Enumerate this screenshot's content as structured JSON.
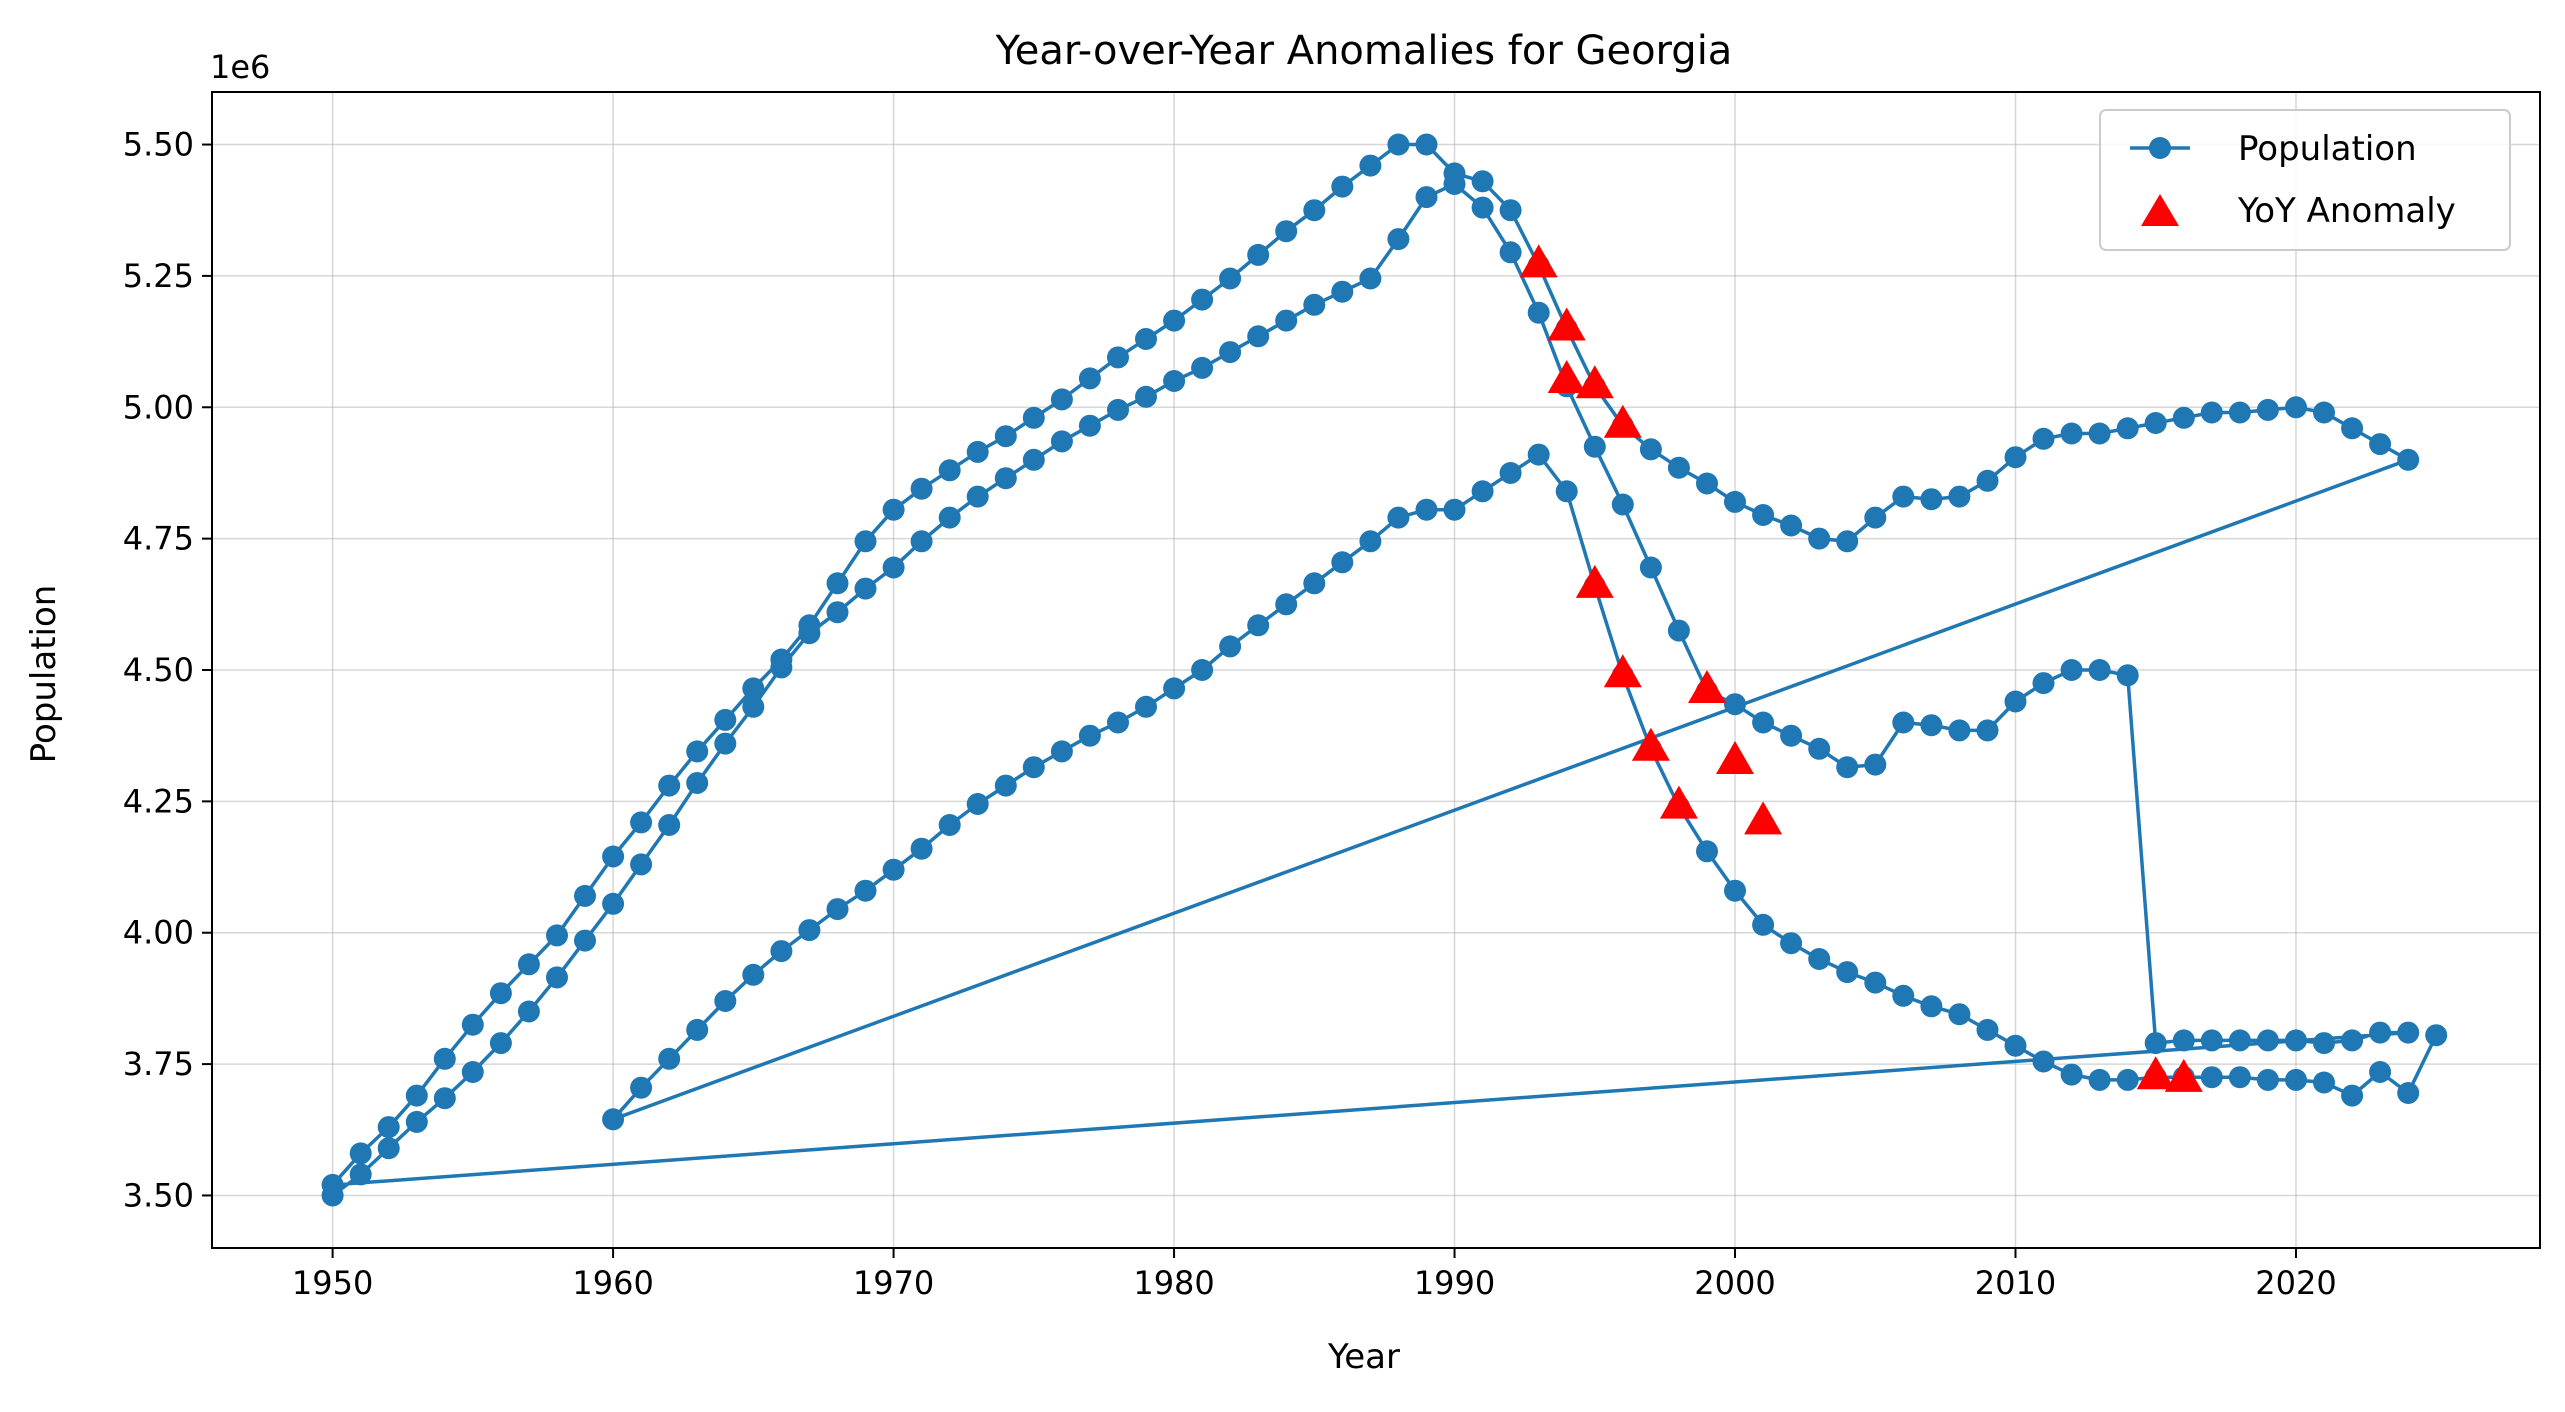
{
  "chart_data": {
    "type": "line",
    "title": "Year-over-Year Anomalies for Georgia",
    "xlabel": "Year",
    "ylabel": "Population",
    "y_offset_label": "1e6",
    "xlim": [
      1945.7,
      2028.7
    ],
    "ylim": [
      3.4,
      5.6
    ],
    "x_ticks": [
      1950,
      1960,
      1970,
      1980,
      1990,
      2000,
      2010,
      2020
    ],
    "x_tick_labels": [
      "1950",
      "1960",
      "1970",
      "1980",
      "1990",
      "2000",
      "2010",
      "2020"
    ],
    "y_ticks": [
      3.5,
      3.75,
      4.0,
      4.25,
      4.5,
      4.75,
      5.0,
      5.25,
      5.5
    ],
    "y_tick_labels": [
      "3.50",
      "3.75",
      "4.00",
      "4.25",
      "4.50",
      "4.75",
      "5.00",
      "5.25",
      "5.50"
    ],
    "grid": true,
    "legend_position": "top-right",
    "colors": {
      "line": "#1f77b4",
      "anomaly": "#ff0000",
      "grid": "#b0b0b0"
    },
    "series": [
      {
        "name": "Population",
        "type": "line",
        "marker": "circle",
        "x": [
          1950,
          1951,
          1952,
          1953,
          1954,
          1955,
          1956,
          1957,
          1958,
          1959,
          1960,
          1961,
          1962,
          1963,
          1964,
          1965,
          1966,
          1967,
          1968,
          1969,
          1970,
          1971,
          1972,
          1973,
          1974,
          1975,
          1976,
          1977,
          1978,
          1979,
          1980,
          1981,
          1982,
          1983,
          1984,
          1985,
          1986,
          1987,
          1988,
          1989,
          1990,
          1991,
          1992,
          1993,
          1994,
          1995,
          1996,
          1997,
          1998,
          1999,
          2000,
          2001,
          2002,
          2003,
          2004,
          2005,
          2006,
          2007,
          2008,
          2009,
          2010,
          2011,
          2012,
          2013,
          2014,
          2015,
          2016,
          2017,
          2018,
          2019,
          2020,
          2021,
          2022,
          2023,
          2024,
          1950,
          1951,
          1952,
          1953,
          1954,
          1955,
          1956,
          1957,
          1958,
          1959,
          1960,
          1961,
          1962,
          1963,
          1964,
          1965,
          1966,
          1967,
          1968,
          1969,
          1970,
          1971,
          1972,
          1973,
          1974,
          1975,
          1976,
          1977,
          1978,
          1979,
          1980,
          1981,
          1982,
          1983,
          1984,
          1985,
          1986,
          1987,
          1988,
          1989,
          1990,
          1991,
          1992,
          1993,
          1994,
          1995,
          1996,
          1997,
          1998,
          1999,
          2000,
          2001,
          2002,
          2003,
          2004,
          2005,
          2006,
          2007,
          2008,
          2009,
          2010,
          2011,
          2012,
          2013,
          2014,
          2015,
          2016,
          2017,
          2018,
          2019,
          2020,
          2021,
          2022,
          2023,
          2024,
          1960,
          1961,
          1962,
          1963,
          1964,
          1965,
          1966,
          1967,
          1968,
          1969,
          1970,
          1971,
          1972,
          1973,
          1974,
          1975,
          1976,
          1977,
          1978,
          1979,
          1980,
          1981,
          1982,
          1983,
          1984,
          1985,
          1986,
          1987,
          1988,
          1989,
          1990,
          1991,
          1992,
          1993,
          1994,
          1995,
          1996,
          1997,
          1998,
          1999,
          2000,
          2001,
          2002,
          2003,
          2004,
          2005,
          2006,
          2007,
          2008,
          2009,
          2010,
          2011,
          2012,
          2013,
          2014,
          2015,
          2016,
          2017,
          2018,
          2019,
          2020,
          2021,
          2022,
          2023,
          2024,
          2025
        ],
        "values": [
          3.5,
          3.54,
          3.59,
          3.64,
          3.685,
          3.735,
          3.79,
          3.85,
          3.915,
          3.985,
          4.055,
          4.13,
          4.205,
          4.285,
          4.36,
          4.43,
          4.505,
          4.57,
          4.61,
          4.655,
          4.695,
          4.745,
          4.79,
          4.83,
          4.865,
          4.9,
          4.935,
          4.965,
          4.995,
          5.02,
          5.05,
          5.075,
          5.105,
          5.135,
          5.165,
          5.195,
          5.22,
          5.245,
          5.32,
          5.4,
          5.425,
          5.38,
          5.295,
          5.18,
          5.04,
          4.925,
          4.815,
          4.695,
          4.575,
          4.46,
          4.435,
          4.4,
          4.375,
          4.35,
          4.315,
          4.32,
          4.4,
          4.395,
          4.385,
          4.385,
          4.44,
          4.475,
          4.5,
          4.5,
          4.49,
          3.79,
          3.795,
          3.795,
          3.795,
          3.795,
          3.795,
          3.79,
          3.795,
          3.81,
          3.81,
          3.52,
          3.58,
          3.63,
          3.69,
          3.76,
          3.825,
          3.885,
          3.94,
          3.995,
          4.07,
          4.145,
          4.21,
          4.28,
          4.345,
          4.405,
          4.465,
          4.52,
          4.585,
          4.665,
          4.745,
          4.805,
          4.845,
          4.88,
          4.915,
          4.945,
          4.98,
          5.015,
          5.055,
          5.095,
          5.13,
          5.165,
          5.205,
          5.245,
          5.29,
          5.335,
          5.375,
          5.42,
          5.46,
          5.5,
          5.5,
          5.445,
          5.43,
          5.375,
          5.27,
          5.15,
          5.04,
          4.965,
          4.92,
          4.885,
          4.855,
          4.82,
          4.795,
          4.775,
          4.75,
          4.745,
          4.79,
          4.83,
          4.825,
          4.83,
          4.86,
          4.905,
          4.94,
          4.95,
          4.95,
          4.96,
          4.97,
          4.98,
          4.99,
          4.99,
          4.995,
          5.0,
          4.99,
          4.96,
          4.93,
          4.9,
          3.645,
          3.705,
          3.76,
          3.815,
          3.87,
          3.92,
          3.965,
          4.005,
          4.045,
          4.08,
          4.12,
          4.16,
          4.205,
          4.245,
          4.28,
          4.315,
          4.345,
          4.375,
          4.4,
          4.43,
          4.465,
          4.5,
          4.545,
          4.585,
          4.625,
          4.665,
          4.705,
          4.745,
          4.79,
          4.805,
          4.805,
          4.84,
          4.875,
          4.91,
          4.84,
          4.66,
          4.49,
          4.35,
          4.24,
          4.155,
          4.08,
          4.015,
          3.98,
          3.95,
          3.925,
          3.905,
          3.88,
          3.86,
          3.845,
          3.815,
          3.785,
          3.755,
          3.73,
          3.72,
          3.72,
          3.725,
          3.725,
          3.725,
          3.725,
          3.72,
          3.72,
          3.715,
          3.69,
          3.735,
          3.695,
          3.805
        ]
      },
      {
        "name": "YoY Anomaly",
        "type": "scatter",
        "marker": "triangle",
        "x": [
          1993,
          1994,
          1994,
          1995,
          1995,
          1996,
          1996,
          1997,
          1998,
          1999,
          2000,
          2001,
          2015,
          2016
        ],
        "values": [
          5.27,
          5.15,
          5.05,
          5.04,
          4.66,
          4.965,
          4.49,
          4.35,
          4.24,
          4.46,
          4.325,
          4.21,
          3.725,
          3.72
        ]
      }
    ]
  }
}
